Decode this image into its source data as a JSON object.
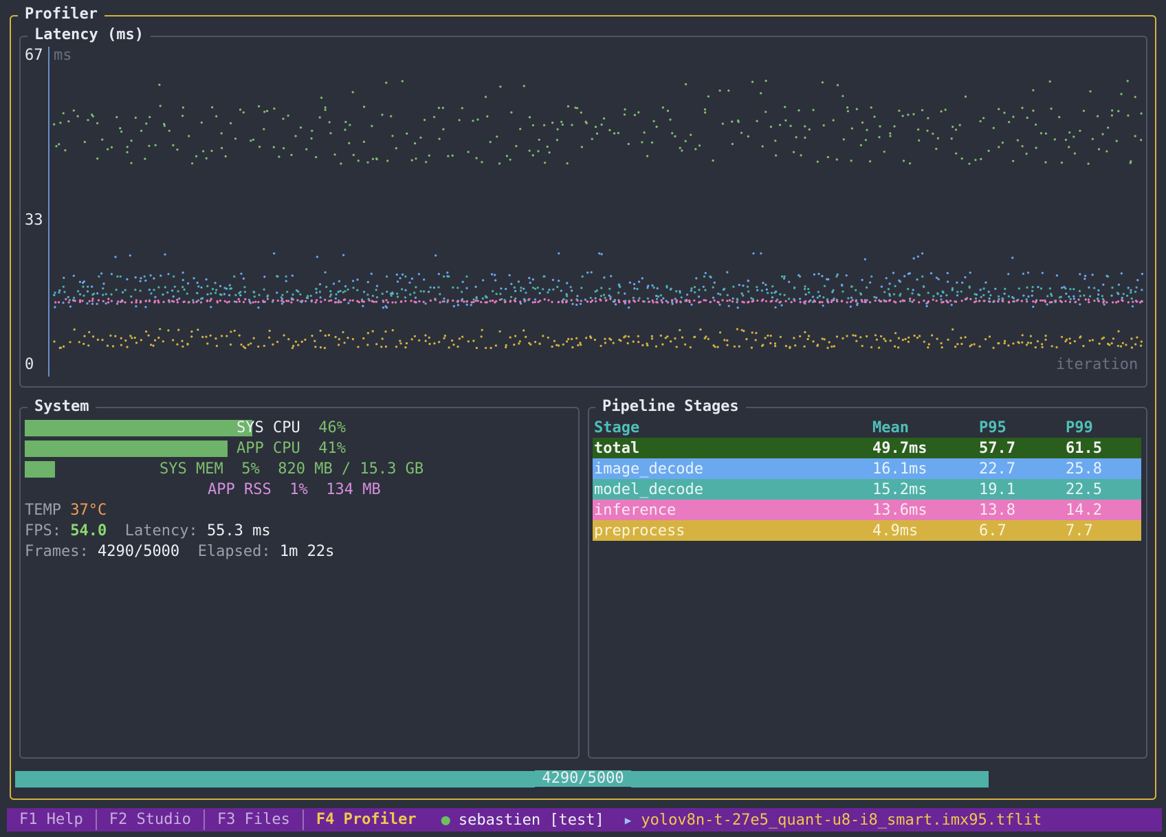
{
  "app": {
    "title": "Profiler"
  },
  "latency": {
    "title": "Latency (ms)",
    "y_ticks": [
      "67",
      "33",
      "0"
    ],
    "y_unit": "ms",
    "x_unit": "iteration"
  },
  "chart_data": {
    "type": "scatter",
    "title": "Latency (ms)",
    "xlabel": "iteration",
    "ylabel": "ms",
    "ylim": [
      0,
      67
    ],
    "y_ticks": [
      0,
      33,
      67
    ],
    "series": [
      {
        "name": "total",
        "color": "#7fbf6e",
        "mean": 49.7,
        "p95": 57.7,
        "p99": 61.5,
        "band": [
          42,
          60
        ]
      },
      {
        "name": "image_decode",
        "color": "#6aa8f0",
        "mean": 16.1,
        "p95": 22.7,
        "p99": 25.8,
        "band": [
          11,
          22
        ]
      },
      {
        "name": "model_decode",
        "color": "#4fb0a8",
        "mean": 15.2,
        "p95": 19.1,
        "p99": 22.5,
        "band": [
          12,
          17
        ]
      },
      {
        "name": "inference",
        "color": "#e97abf",
        "mean": 13.6,
        "p95": 13.8,
        "p99": 14.2,
        "band": [
          13.4,
          14.2
        ]
      },
      {
        "name": "preprocess",
        "color": "#d6b240",
        "mean": 4.9,
        "p95": 6.7,
        "p99": 7.7,
        "band": [
          3,
          7
        ]
      }
    ]
  },
  "system": {
    "title": "System",
    "sys_cpu": {
      "label": "SYS CPU",
      "value": "46%",
      "fraction": 0.46
    },
    "app_cpu": {
      "label": "APP CPU",
      "value": "41%",
      "fraction": 0.41
    },
    "sys_mem": {
      "label": "SYS MEM",
      "percent": "5%",
      "detail": "820 MB / 15.3 GB",
      "fraction": 0.05
    },
    "app_rss": {
      "label": "APP RSS",
      "percent": "1%",
      "detail": "134 MB"
    },
    "temp": {
      "label": "TEMP",
      "value": "37°C"
    },
    "fps": {
      "label": "FPS:",
      "value": "54.0"
    },
    "latency": {
      "label": "Latency:",
      "value": "55.3 ms"
    },
    "frames": {
      "label": "Frames:",
      "value": "4290/5000"
    },
    "elapsed": {
      "label": "Elapsed:",
      "value": "1m 22s"
    }
  },
  "pipeline": {
    "title": "Pipeline Stages",
    "headers": [
      "Stage",
      "Mean",
      "P95",
      "P99"
    ],
    "rows": [
      {
        "stage": "total",
        "mean": "49.7ms",
        "p95": "57.7",
        "p99": "61.5",
        "bg": "#2a5e1c",
        "fg": "#f2f2f2"
      },
      {
        "stage": "image_decode",
        "mean": "16.1ms",
        "p95": "22.7",
        "p99": "25.8",
        "bg": "#6aa8f0",
        "fg": "#eaf2ff"
      },
      {
        "stage": "model_decode",
        "mean": "15.2ms",
        "p95": "19.1",
        "p99": "22.5",
        "bg": "#4fb0a8",
        "fg": "#e8f6f4"
      },
      {
        "stage": "inference",
        "mean": "13.6ms",
        "p95": "13.8",
        "p99": "14.2",
        "bg": "#e97abf",
        "fg": "#fbe8f3"
      },
      {
        "stage": "preprocess",
        "mean": "4.9ms",
        "p95": "6.7",
        "p99": "7.7",
        "bg": "#d6b240",
        "fg": "#fbf4dc"
      }
    ]
  },
  "progress": {
    "label": "4290/5000",
    "fraction": 0.858
  },
  "statusbar": {
    "tabs": [
      {
        "label": "F1 Help"
      },
      {
        "label": "F2 Studio"
      },
      {
        "label": "F3 Files"
      },
      {
        "label": "F4 Profiler"
      }
    ],
    "user": "sebastien [test]",
    "model": "yolov8n-t-27e5_quant-u8-i8_smart.imx95.tflit"
  }
}
